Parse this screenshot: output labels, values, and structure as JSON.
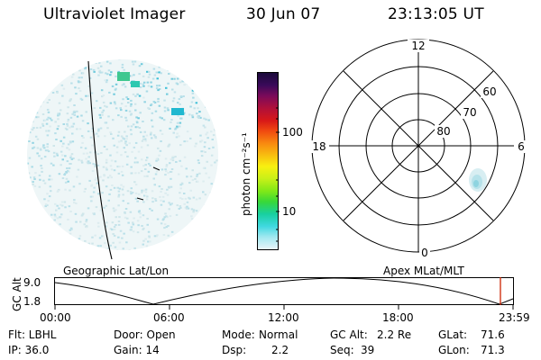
{
  "header": {
    "instrument": "Ultraviolet Imager",
    "date": "30 Jun 07",
    "time": "23:13:05 UT"
  },
  "left_panel": {
    "label": "Geographic Lat/Lon"
  },
  "right_panel": {
    "label": "Apex MLat/MLT",
    "mlt_labels": {
      "top": "12",
      "left": "18",
      "right": "6",
      "bottom": "0"
    },
    "lat_rings": [
      "60",
      "70",
      "80"
    ]
  },
  "colorbar": {
    "unit_label": "photon cm⁻²s⁻¹",
    "ticks": [
      "100",
      "10"
    ],
    "colors": [
      "#1a0a3a",
      "#3a0a5a",
      "#7a0a5a",
      "#b0103a",
      "#d81818",
      "#f04a10",
      "#f88a10",
      "#f8c010",
      "#f8f010",
      "#c8f018",
      "#80e818",
      "#38d838",
      "#18d0a0",
      "#40d8e0",
      "#a0e8f0",
      "#e8f4f8"
    ]
  },
  "timeline": {
    "axis_label": "GC Alt",
    "y_ticks": [
      "9.0",
      "1.8"
    ],
    "x_ticks": [
      "00:00",
      "06:00",
      "12:00",
      "18:00",
      "23:59"
    ],
    "marker_color": "#cc2200"
  },
  "info": {
    "row1": {
      "filter": "Flt: LBHL",
      "door": "Door: Open",
      "mode_label": "Mode:",
      "mode_value": "Normal",
      "gcalt_label": "GC Alt:",
      "gcalt_value": "2.2 Re",
      "glat_label": "GLat:",
      "glat_value": "71.6"
    },
    "row2": {
      "ip": "IP: 36.0",
      "gain": "Gain: 14",
      "dsp_label": "Dsp:",
      "dsp_value": "2.2",
      "seq_label": "Seq:",
      "seq_value": "39",
      "glon_label": "GLon:",
      "glon_value": "71.3"
    }
  }
}
